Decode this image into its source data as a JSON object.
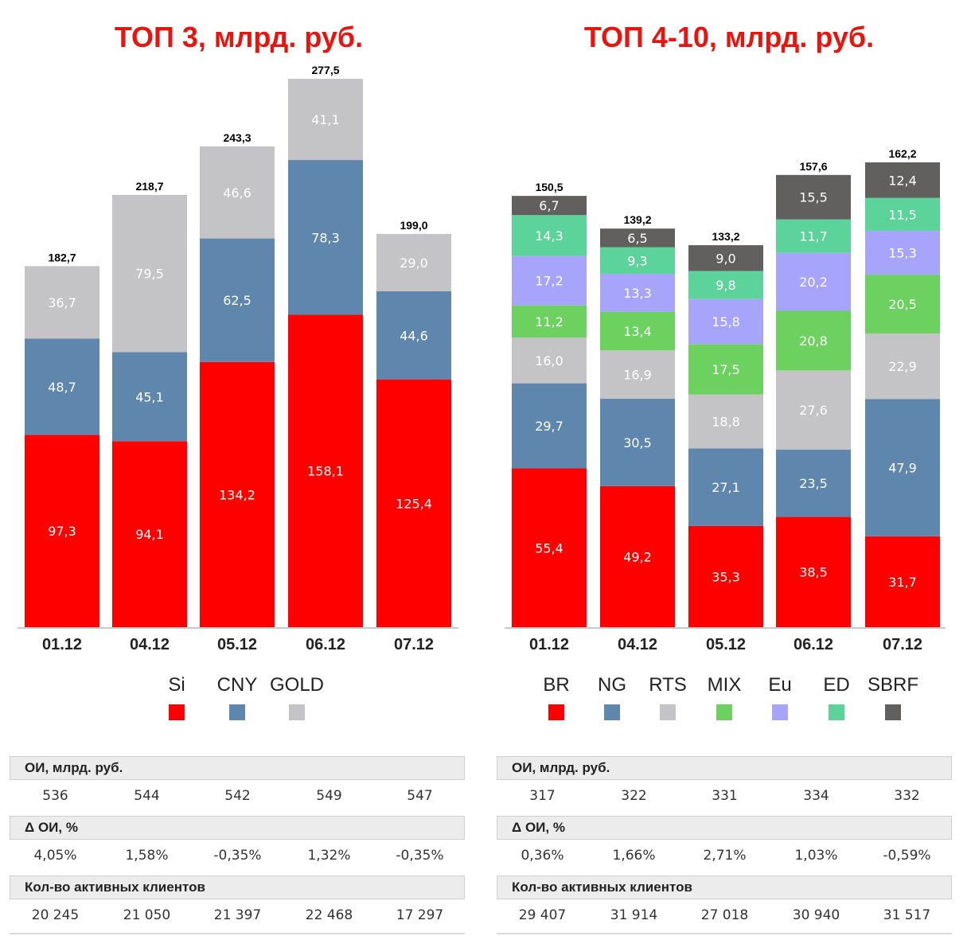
{
  "left": {
    "title": "ТОП 3, млрд. руб.",
    "chart_data": {
      "type": "bar",
      "stacked": true,
      "categories": [
        "01.12",
        "04.12",
        "05.12",
        "06.12",
        "07.12"
      ],
      "series": [
        {
          "name": "Si",
          "color": "#fe0000",
          "values": [
            97.3,
            94.1,
            134.2,
            158.1,
            125.4
          ],
          "labels": [
            "97,3",
            "94,1",
            "134,2",
            "158,1",
            "125,4"
          ]
        },
        {
          "name": "CNY",
          "color": "#5f86ad",
          "values": [
            48.7,
            45.1,
            62.5,
            78.3,
            44.6
          ],
          "labels": [
            "48,7",
            "45,1",
            "62,5",
            "78,3",
            "44,6"
          ]
        },
        {
          "name": "GOLD",
          "color": "#c4c3c5",
          "values": [
            36.7,
            79.5,
            46.6,
            41.1,
            29.0
          ],
          "labels": [
            "36,7",
            "79,5",
            "46,6",
            "41,1",
            "29,0"
          ]
        }
      ],
      "totals": [
        "182,7",
        "218,7",
        "243,3",
        "277,5",
        "199,0"
      ],
      "ylim": [
        0,
        277.5
      ],
      "grid": false,
      "legend_position": "bottom"
    },
    "table": [
      {
        "header": "ОИ, млрд. руб.",
        "values": [
          "536",
          "544",
          "542",
          "549",
          "547"
        ]
      },
      {
        "header": "Δ ОИ, %",
        "values": [
          "4,05%",
          "1,58%",
          "-0,35%",
          "1,32%",
          "-0,35%"
        ]
      },
      {
        "header": "Кол-во активных клиентов",
        "values": [
          "20 245",
          "21 050",
          "21 397",
          "22 468",
          "17 297"
        ]
      }
    ]
  },
  "right": {
    "title": "ТОП 4-10, млрд. руб.",
    "chart_data": {
      "type": "bar",
      "stacked": true,
      "categories": [
        "01.12",
        "04.12",
        "05.12",
        "06.12",
        "07.12"
      ],
      "series": [
        {
          "name": "BR",
          "color": "#fe0000",
          "values": [
            55.4,
            49.2,
            35.3,
            38.5,
            31.7
          ],
          "labels": [
            "55,4",
            "49,2",
            "35,3",
            "38,5",
            "31,7"
          ]
        },
        {
          "name": "NG",
          "color": "#5f86ad",
          "values": [
            29.7,
            30.5,
            27.1,
            23.5,
            47.9
          ],
          "labels": [
            "29,7",
            "30,5",
            "27,1",
            "23,5",
            "47,9"
          ]
        },
        {
          "name": "RTS",
          "color": "#c4c3c5",
          "values": [
            16.0,
            16.9,
            18.8,
            27.6,
            22.9
          ],
          "labels": [
            "16,0",
            "16,9",
            "18,8",
            "27,6",
            "22,9"
          ]
        },
        {
          "name": "MIX",
          "color": "#6dd160",
          "values": [
            11.2,
            13.4,
            17.5,
            20.8,
            20.5
          ],
          "labels": [
            "11,2",
            "13,4",
            "17,5",
            "20,8",
            "20,5"
          ]
        },
        {
          "name": "Eu",
          "color": "#a7a4fb",
          "values": [
            17.2,
            13.3,
            15.8,
            20.2,
            15.3
          ],
          "labels": [
            "17,2",
            "13,3",
            "15,8",
            "20,2",
            "15,3"
          ]
        },
        {
          "name": "ED",
          "color": "#5bd39b",
          "values": [
            14.3,
            9.3,
            9.8,
            11.7,
            11.5
          ],
          "labels": [
            "14,3",
            "9,3",
            "9,8",
            "11,7",
            "11,5"
          ]
        },
        {
          "name": "SBRF",
          "color": "#625f5f",
          "values": [
            6.7,
            6.5,
            9.0,
            15.5,
            12.4
          ],
          "labels": [
            "6,7",
            "6,5",
            "9,0",
            "15,5",
            "12,4"
          ]
        }
      ],
      "totals": [
        "150,5",
        "139,2",
        "133,2",
        "157,6",
        "162,2"
      ],
      "ylim": [
        0,
        162.2
      ],
      "grid": false,
      "legend_position": "bottom"
    },
    "table": [
      {
        "header": "ОИ, млрд. руб.",
        "values": [
          "317",
          "322",
          "331",
          "334",
          "332"
        ]
      },
      {
        "header": "Δ ОИ, %",
        "values": [
          "0,36%",
          "1,66%",
          "2,71%",
          "1,03%",
          "-0,59%"
        ]
      },
      {
        "header": "Кол-во активных клиентов",
        "values": [
          "29 407",
          "31 914",
          "27 018",
          "30 940",
          "31 517"
        ]
      }
    ]
  }
}
